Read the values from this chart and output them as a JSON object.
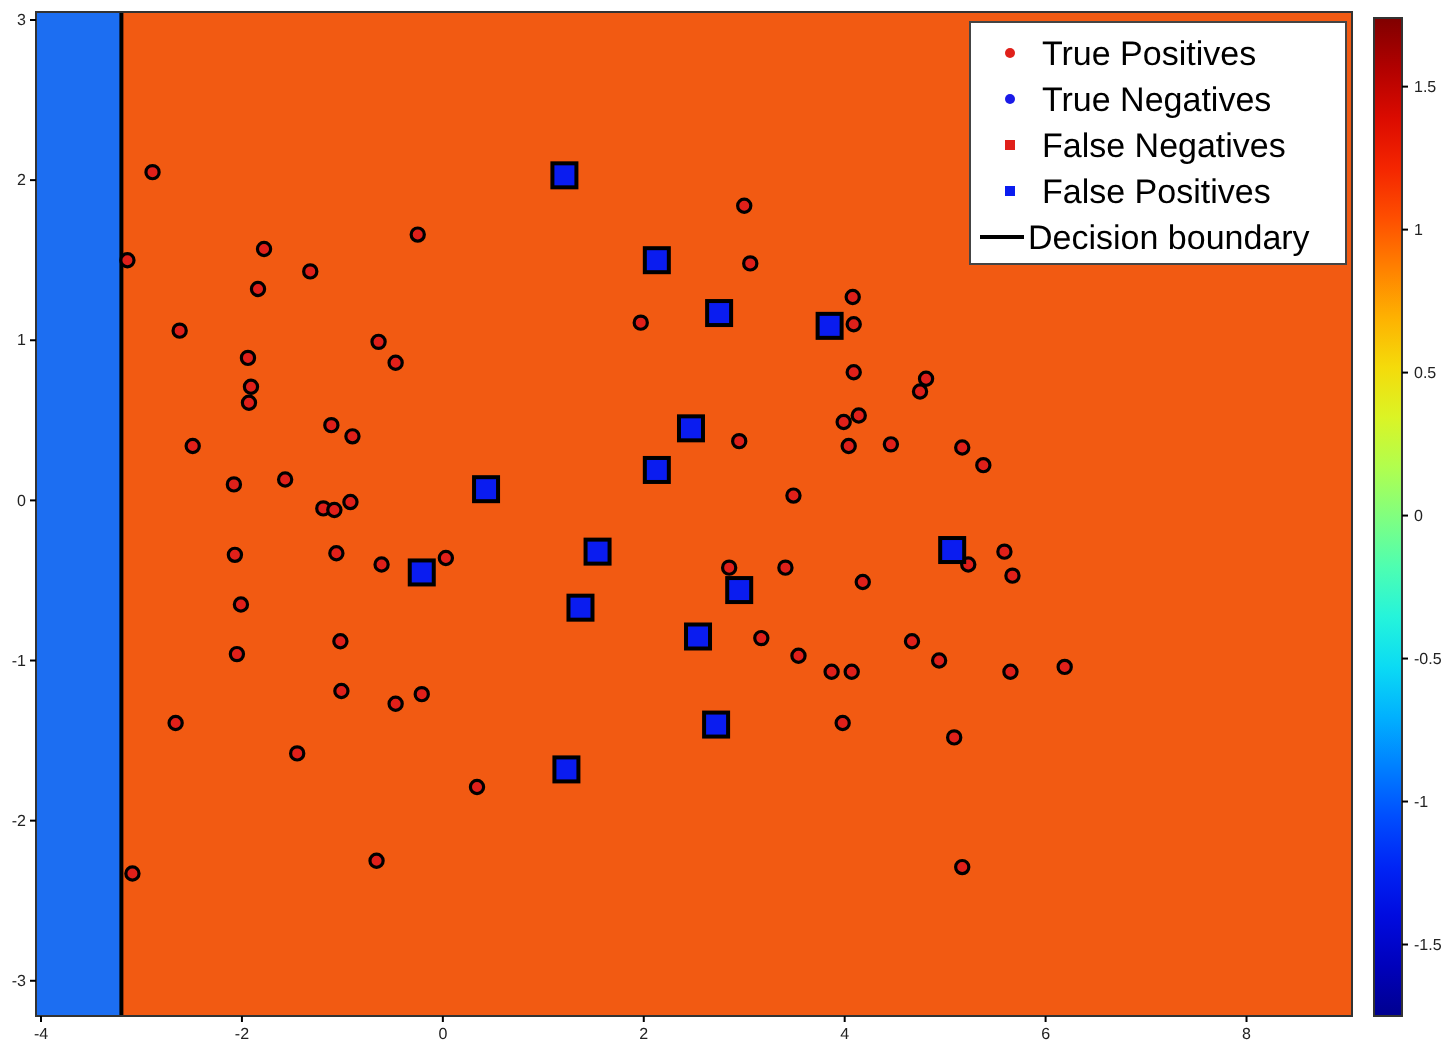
{
  "chart_data": {
    "type": "scatter",
    "xlim": [
      -4.05,
      9.05
    ],
    "ylim": [
      -3.22,
      3.05
    ],
    "xticks": [
      -4,
      -2,
      0,
      2,
      4,
      6,
      8
    ],
    "yticks": [
      -3,
      -2,
      -1,
      0,
      1,
      2,
      3
    ],
    "grid": false,
    "legend": "top right",
    "clim": [
      -1.75,
      1.74
    ],
    "cticks": [
      -1.5,
      -1,
      -0.5,
      0,
      0.5,
      1,
      1.5
    ],
    "bands": [
      {
        "axis": "x",
        "from": -4.05,
        "to": -3.2,
        "color": "#1c6ef2"
      },
      {
        "axis": "x",
        "from": -3.2,
        "to": 9.05,
        "color": "#f25a12"
      }
    ],
    "series": [
      {
        "name": "True Positives",
        "color": "#e0201a",
        "marker": "circle",
        "x": [
          -2.89,
          -3.14,
          -1.78,
          -0.25,
          -1.32,
          -1.84,
          -2.62,
          -0.64,
          -0.47,
          -1.94,
          -1.91,
          -1.93,
          -1.11,
          -0.9,
          -2.49,
          -2.08,
          -1.57,
          -1.19,
          -1.08,
          -0.92,
          1.97,
          3.0,
          3.06,
          4.08,
          4.09,
          4.09,
          4.81,
          4.75,
          4.14,
          3.99,
          4.04,
          2.95,
          4.46,
          5.17,
          5.38,
          3.49,
          -2.07,
          -1.06,
          -0.61,
          0.03,
          -2.01,
          -1.02,
          -2.05,
          -1.01,
          -0.47,
          -0.21,
          -2.66,
          -1.45,
          0.34,
          -0.66,
          -3.09,
          2.85,
          3.41,
          4.18,
          5.23,
          5.59,
          5.67,
          3.17,
          3.54,
          3.87,
          4.07,
          4.67,
          4.94,
          5.65,
          6.19,
          3.98,
          5.09,
          5.17
        ],
        "values": [
          2.05,
          1.5,
          1.57,
          1.66,
          1.43,
          1.32,
          1.06,
          0.99,
          0.86,
          0.89,
          0.71,
          0.61,
          0.47,
          0.4,
          0.34,
          0.1,
          0.13,
          -0.05,
          -0.06,
          -0.01,
          1.11,
          1.84,
          1.48,
          1.27,
          1.1,
          0.8,
          0.76,
          0.68,
          0.53,
          0.49,
          0.34,
          0.37,
          0.35,
          0.33,
          0.22,
          0.03,
          -0.34,
          -0.33,
          -0.4,
          -0.36,
          -0.65,
          -0.88,
          -0.96,
          -1.19,
          -1.27,
          -1.21,
          -1.39,
          -1.58,
          -1.79,
          -2.25,
          -2.33,
          -0.42,
          -0.42,
          -0.51,
          -0.4,
          -0.32,
          -0.47,
          -0.86,
          -0.97,
          -1.07,
          -1.07,
          -0.88,
          -1.0,
          -1.07,
          -1.04,
          -1.39,
          -1.48,
          -2.29
        ]
      },
      {
        "name": "True Negatives",
        "color": "#1a1ae8",
        "marker": "circle"
      },
      {
        "name": "False Negatives",
        "color": "#e0201a",
        "marker": "square"
      },
      {
        "name": "False Positives",
        "color": "#0a1cf0",
        "marker": "square",
        "x": [
          1.21,
          2.13,
          2.47,
          2.13,
          0.43,
          2.75,
          3.85,
          -0.21,
          1.54,
          1.37,
          2.54,
          1.23,
          5.07,
          2.95,
          2.72
        ],
        "values": [
          2.03,
          1.5,
          0.45,
          0.19,
          0.07,
          1.17,
          1.09,
          -0.45,
          -0.32,
          -0.67,
          -0.85,
          -1.68,
          -0.31,
          -0.56,
          -1.4
        ]
      },
      {
        "name": "Decision boundary",
        "type": "line",
        "color": "#000000",
        "line_style": "solid",
        "x": [
          -3.2,
          -3.2
        ],
        "values": [
          -3.22,
          3.05
        ]
      }
    ]
  }
}
